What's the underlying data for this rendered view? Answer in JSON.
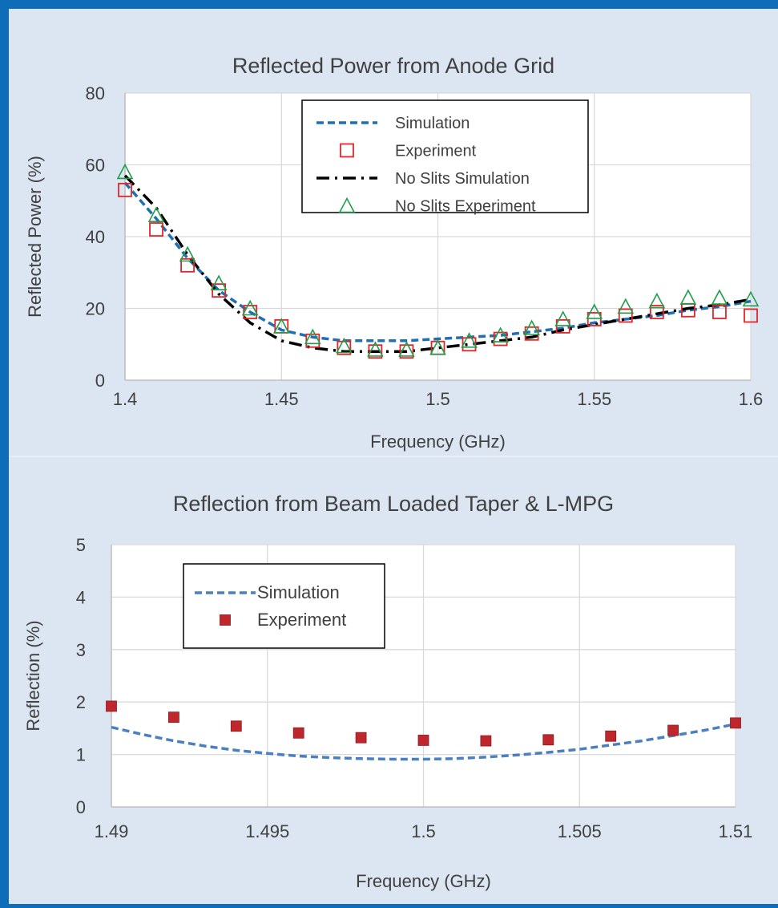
{
  "chart_data": [
    {
      "type": "line",
      "title": "Reflected Power from Anode Grid",
      "xlabel": "Frequency (GHz)",
      "ylabel": "Reflected Power (%)",
      "xlim": [
        1.4,
        1.6
      ],
      "ylim": [
        0,
        80
      ],
      "x_ticks": [
        "1.4",
        "1.45",
        "1.5",
        "1.55",
        "1.6"
      ],
      "y_ticks": [
        "0",
        "20",
        "40",
        "60",
        "80"
      ],
      "grid": true,
      "legend_position": "top-center",
      "series": [
        {
          "name": "Simulation",
          "style": "dashed-line",
          "color": "#1f6fb4",
          "x": [
            1.4,
            1.41,
            1.42,
            1.43,
            1.44,
            1.45,
            1.46,
            1.47,
            1.48,
            1.49,
            1.5,
            1.51,
            1.52,
            1.53,
            1.54,
            1.55,
            1.56,
            1.57,
            1.58,
            1.59,
            1.6
          ],
          "y": [
            55,
            45,
            34,
            25,
            19,
            14,
            12,
            11,
            11,
            11,
            11.5,
            12,
            12.5,
            13.5,
            14.5,
            16,
            17,
            18,
            19.5,
            20.5,
            22
          ]
        },
        {
          "name": "Experiment",
          "style": "open-square",
          "color": "#e0262a",
          "x": [
            1.4,
            1.41,
            1.42,
            1.43,
            1.44,
            1.45,
            1.46,
            1.47,
            1.48,
            1.49,
            1.5,
            1.51,
            1.52,
            1.53,
            1.54,
            1.55,
            1.56,
            1.57,
            1.58,
            1.59,
            1.6
          ],
          "y": [
            53,
            42,
            32,
            25,
            19,
            15,
            11,
            9,
            8,
            8,
            9,
            10,
            11.5,
            13,
            15,
            17,
            18,
            19,
            19.5,
            19,
            18
          ]
        },
        {
          "name": "No Slits Simulation",
          "style": "dash-dot-line",
          "color": "#000000",
          "x": [
            1.4,
            1.41,
            1.42,
            1.43,
            1.44,
            1.45,
            1.46,
            1.47,
            1.48,
            1.49,
            1.5,
            1.51,
            1.52,
            1.53,
            1.54,
            1.55,
            1.56,
            1.57,
            1.58,
            1.59,
            1.6
          ],
          "y": [
            57,
            48,
            35,
            24,
            16,
            11,
            9,
            8,
            8,
            8,
            9,
            10,
            11,
            12,
            14,
            15.5,
            17,
            18.5,
            20,
            21,
            22.5
          ]
        },
        {
          "name": "No Slits Experiment",
          "style": "open-triangle",
          "color": "#1e9e4a",
          "x": [
            1.4,
            1.41,
            1.42,
            1.43,
            1.44,
            1.45,
            1.46,
            1.47,
            1.48,
            1.49,
            1.5,
            1.51,
            1.52,
            1.53,
            1.54,
            1.55,
            1.56,
            1.57,
            1.58,
            1.59,
            1.6
          ],
          "y": [
            58,
            46,
            35,
            27,
            20,
            15,
            12,
            9.5,
            8.5,
            8.5,
            9,
            11,
            12.5,
            14.5,
            17,
            19,
            20.5,
            22,
            23,
            23,
            22.5
          ]
        }
      ]
    },
    {
      "type": "line",
      "title": "Reflection from Beam Loaded Taper & L-MPG",
      "xlabel": "Frequency (GHz)",
      "ylabel": "Reflection (%)",
      "xlim": [
        1.49,
        1.51
      ],
      "ylim": [
        0,
        5
      ],
      "x_ticks": [
        "1.49",
        "1.495",
        "1.5",
        "1.505",
        "1.51"
      ],
      "y_ticks": [
        "0",
        "1",
        "2",
        "3",
        "4",
        "5"
      ],
      "grid": true,
      "legend_position": "top-left",
      "series": [
        {
          "name": "Simulation",
          "style": "dashed-line",
          "color": "#4a7fc0",
          "x": [
            1.49,
            1.491,
            1.492,
            1.493,
            1.494,
            1.495,
            1.496,
            1.497,
            1.498,
            1.499,
            1.5,
            1.501,
            1.502,
            1.503,
            1.504,
            1.505,
            1.506,
            1.507,
            1.508,
            1.509,
            1.51
          ],
          "y": [
            1.52,
            1.38,
            1.26,
            1.16,
            1.08,
            1.02,
            0.97,
            0.94,
            0.92,
            0.91,
            0.91,
            0.92,
            0.95,
            0.99,
            1.04,
            1.1,
            1.18,
            1.26,
            1.36,
            1.46,
            1.58
          ]
        },
        {
          "name": "Experiment",
          "style": "filled-square",
          "color": "#c0272d",
          "x": [
            1.49,
            1.492,
            1.494,
            1.496,
            1.498,
            1.5,
            1.502,
            1.504,
            1.506,
            1.508,
            1.51
          ],
          "y": [
            1.92,
            1.71,
            1.54,
            1.41,
            1.32,
            1.27,
            1.26,
            1.28,
            1.35,
            1.46,
            1.6
          ]
        }
      ]
    }
  ]
}
